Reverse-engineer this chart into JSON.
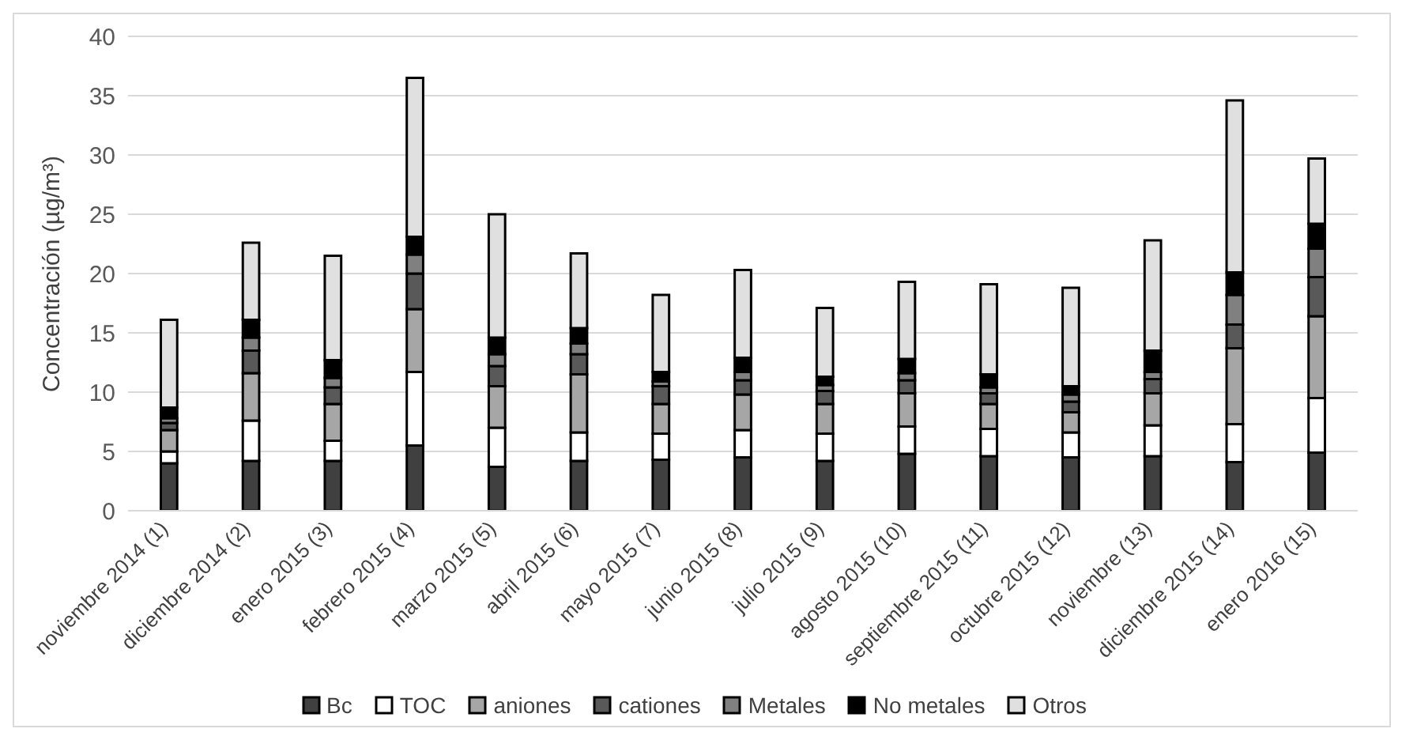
{
  "chart_data": {
    "type": "bar",
    "stacked": true,
    "ylabel": "Concentración (µg/m³)",
    "categories": [
      "noviembre 2014 (1)",
      "diciembre 2014 (2)",
      "enero 2015 (3)",
      "febrero 2015 (4)",
      "marzo 2015 (5)",
      "abril 2015 (6)",
      "mayo 2015 (7)",
      "junio 2015 (8)",
      "julio 2015 (9)",
      "agosto 2015 (10)",
      "septiembre 2015 (11)",
      "octubre 2015 (12)",
      "noviembre  (13)",
      "diciembre 2015 (14)",
      "enero 2016 (15)"
    ],
    "series": [
      {
        "name": "Bc",
        "color": "#404040",
        "values": [
          4.0,
          4.2,
          4.2,
          5.5,
          3.7,
          4.2,
          4.3,
          4.5,
          4.2,
          4.8,
          4.6,
          4.5,
          4.6,
          4.1,
          4.9
        ]
      },
      {
        "name": "TOC",
        "color": "#ffffff",
        "values": [
          1.0,
          3.4,
          1.7,
          6.2,
          3.3,
          2.4,
          2.2,
          2.3,
          2.3,
          2.3,
          2.3,
          2.1,
          2.6,
          3.2,
          4.6
        ]
      },
      {
        "name": "aniones",
        "color": "#a6a6a6",
        "values": [
          1.8,
          4.0,
          3.1,
          5.3,
          3.5,
          4.9,
          2.5,
          3.0,
          2.5,
          2.8,
          2.1,
          1.7,
          2.7,
          6.4,
          6.9
        ]
      },
      {
        "name": "cationes",
        "color": "#595959",
        "values": [
          0.6,
          1.9,
          1.4,
          3.0,
          1.7,
          1.7,
          1.5,
          1.2,
          1.1,
          1.1,
          0.9,
          0.9,
          1.2,
          2.0,
          3.3
        ]
      },
      {
        "name": "Metales",
        "color": "#808080",
        "values": [
          0.4,
          1.1,
          0.8,
          1.6,
          1.0,
          0.9,
          0.4,
          0.7,
          0.5,
          0.6,
          0.5,
          0.6,
          0.6,
          2.5,
          2.4
        ]
      },
      {
        "name": "No metales",
        "color": "#000000",
        "values": [
          0.9,
          1.5,
          1.5,
          1.5,
          1.4,
          1.3,
          0.8,
          1.2,
          0.7,
          1.2,
          1.1,
          0.7,
          1.8,
          1.9,
          2.1
        ]
      },
      {
        "name": "Otros",
        "color": "#e0e0e0",
        "values": [
          7.4,
          6.5,
          8.8,
          13.4,
          10.4,
          6.3,
          6.5,
          7.4,
          5.8,
          6.5,
          7.6,
          8.3,
          9.3,
          14.5,
          5.5
        ]
      }
    ],
    "ylim": [
      0,
      40
    ],
    "yticks": [
      0,
      5,
      10,
      15,
      20,
      25,
      30,
      35,
      40
    ],
    "grid": "y",
    "legend": "bottom"
  }
}
